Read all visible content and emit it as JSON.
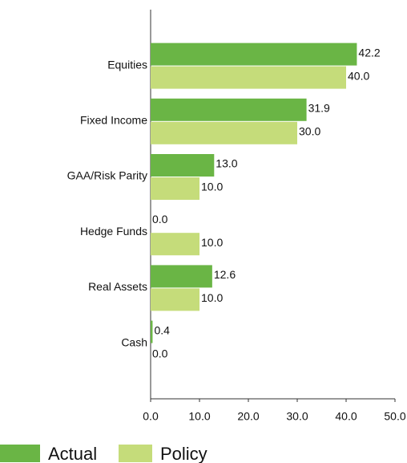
{
  "chart_data": {
    "type": "bar",
    "orientation": "horizontal",
    "categories": [
      "Equities",
      "Fixed Income",
      "GAA/Risk Parity",
      "Hedge Funds",
      "Real Assets",
      "Cash"
    ],
    "series": [
      {
        "name": "Actual",
        "color": "#6ab545",
        "values": [
          42.2,
          31.9,
          13.0,
          0.0,
          12.6,
          0.4
        ],
        "value_labels": [
          "42.2",
          "31.9",
          "13.0",
          "0.0",
          "12.6",
          "0.4"
        ]
      },
      {
        "name": "Policy",
        "color": "#c5dc7a",
        "values": [
          40.0,
          30.0,
          10.0,
          10.0,
          10.0,
          0.0
        ],
        "value_labels": [
          "40.0",
          "30.0",
          "10.0",
          "10.0",
          "10.0",
          "0.0"
        ]
      }
    ],
    "xlim": [
      0,
      50
    ],
    "xticks": [
      {
        "value": 0,
        "label": "0.0"
      },
      {
        "value": 10,
        "label": "10.0"
      },
      {
        "value": 20,
        "label": "20.0"
      },
      {
        "value": 30,
        "label": "30.0"
      },
      {
        "value": 40,
        "label": "40.0"
      },
      {
        "value": 50,
        "label": "50.0"
      }
    ],
    "legend": "bottom-left"
  }
}
